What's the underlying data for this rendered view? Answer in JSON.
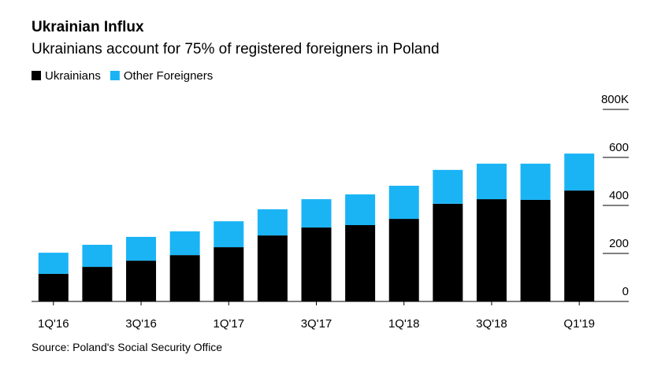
{
  "chart_data": {
    "type": "stacked-bar",
    "title": "Ukrainian Influx",
    "subtitle": "Ukrainians account for 75% of registered foreigners in Poland",
    "source": "Source: Poland's Social Security Office",
    "categories": [
      "1Q'16",
      null,
      "3Q'16",
      null,
      "1Q'17",
      null,
      "3Q'17",
      null,
      "1Q'18",
      null,
      "3Q'18",
      null,
      "Q1'19"
    ],
    "series": [
      {
        "name": "Ukrainians",
        "color": "#000000",
        "values": [
          115,
          144,
          170,
          193,
          226,
          275,
          308,
          318,
          344,
          407,
          426,
          423,
          462
        ]
      },
      {
        "name": "Other Foreigners",
        "color": "#1ab4f5",
        "values": [
          88,
          92,
          99,
          99,
          108,
          109,
          118,
          128,
          138,
          141,
          148,
          151,
          154
        ]
      }
    ],
    "ylim": [
      0,
      800
    ],
    "yticks": [
      0,
      200,
      400,
      600,
      {
        "value": 800,
        "label": "800K"
      }
    ]
  }
}
